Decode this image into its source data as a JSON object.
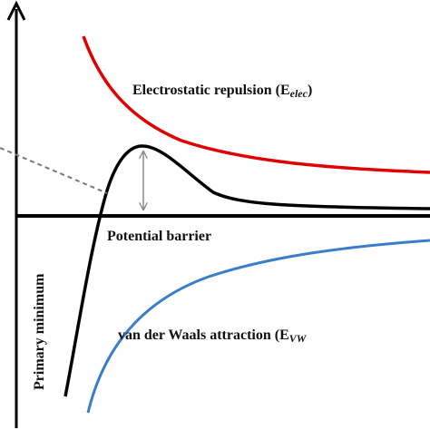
{
  "labels": {
    "electrostatic_main": "Electrostatic repulsion (E",
    "electrostatic_sub": "elec",
    "electrostatic_close": ")",
    "potential_barrier": "Potential barrier",
    "primary_minimum": "Primary minimum",
    "vdw_main": "van der Waals attraction (E",
    "vdw_sub": "VW"
  },
  "colors": {
    "electrostatic_curve": "#e00000",
    "total_curve": "#000000",
    "vdw_curve": "#3a7dc8",
    "dashed_line": "#777777",
    "barrier_arrow": "#888888",
    "axes": "#000000"
  }
}
